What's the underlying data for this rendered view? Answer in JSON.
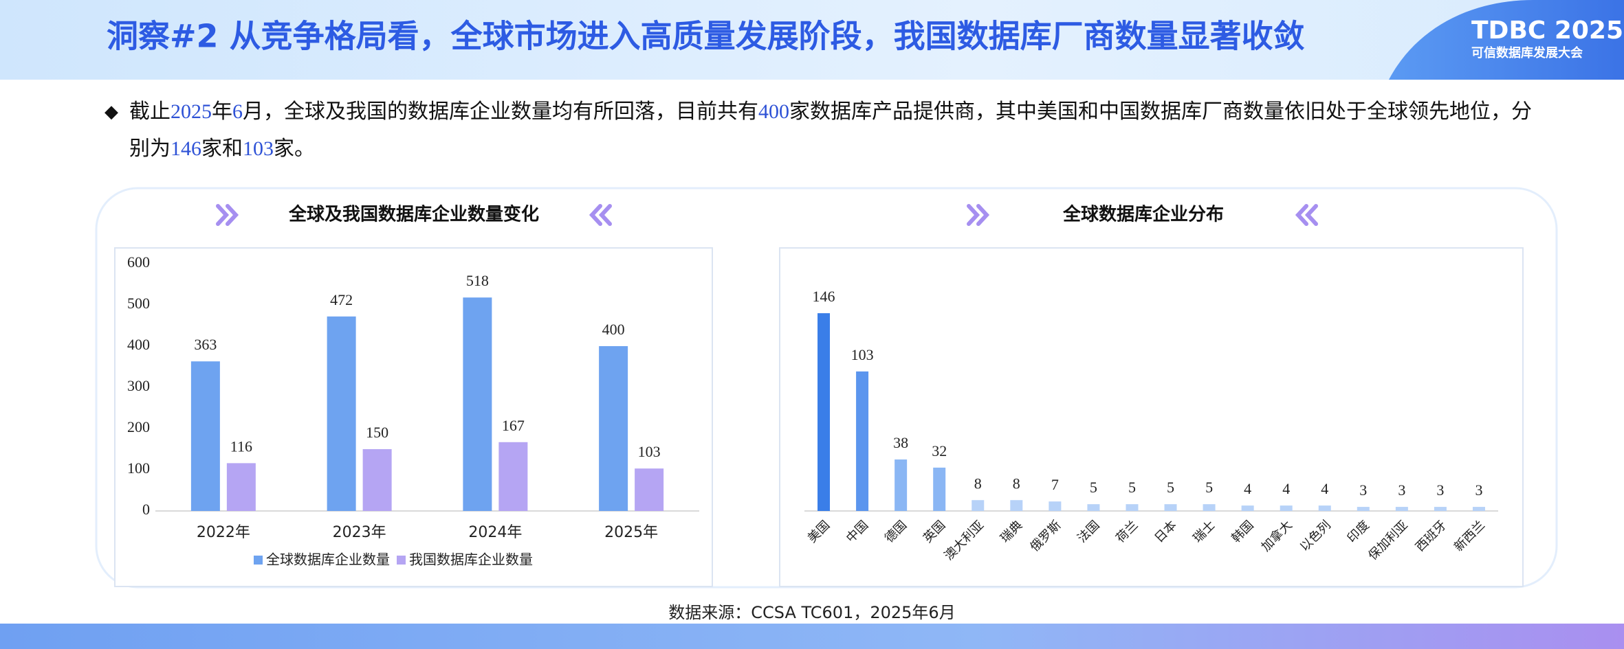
{
  "header": {
    "title": "洞察#2 从竞争格局看，全球市场进入高质量发展阶段，我国数据库厂商数量显著收敛",
    "logo": "TDBC 2025",
    "logo_sub": "可信数据库发展大会"
  },
  "bullet": [
    "截止",
    "2025",
    "年",
    "6",
    "月，全球及我国的数据库企业数量均有所回落，目前共有",
    "400",
    "家数据库产品提供商，其中美国和中国数据库厂商数量依旧处于全球领先地位，分别为",
    "146",
    "家和",
    "103",
    "家。"
  ],
  "chart_data": [
    {
      "type": "bar",
      "title": "全球及我国数据库企业数量变化",
      "categories": [
        "2022年",
        "2023年",
        "2024年",
        "2025年"
      ],
      "series": [
        {
          "name": "全球数据库企业数量",
          "color": "#6ea3f0",
          "values": [
            363,
            472,
            518,
            400
          ]
        },
        {
          "name": "我国数据库企业数量",
          "color": "#b5a5f3",
          "values": [
            116,
            150,
            167,
            103
          ]
        }
      ],
      "ylim": [
        0,
        600
      ],
      "yticks": [
        0,
        100,
        200,
        300,
        400,
        500,
        600
      ],
      "grid": false,
      "legend": "bottom"
    },
    {
      "type": "bar",
      "title": "全球数据库企业分布",
      "categories": [
        "美国",
        "中国",
        "德国",
        "英国",
        "澳大利亚",
        "瑞典",
        "俄罗斯",
        "法国",
        "荷兰",
        "日本",
        "瑞士",
        "韩国",
        "加拿大",
        "以色列",
        "印度",
        "保加利亚",
        "西班牙",
        "新西兰"
      ],
      "values": [
        146,
        103,
        38,
        32,
        8,
        8,
        7,
        5,
        5,
        5,
        5,
        4,
        4,
        4,
        3,
        3,
        3,
        3
      ],
      "colors": [
        "#3a7ee8",
        "#5b95ee",
        "#8ab6f4",
        "#8ab6f4",
        "#b7d2f8",
        "#b7d2f8",
        "#b7d2f8",
        "#b7d2f8",
        "#b7d2f8",
        "#b7d2f8",
        "#b7d2f8",
        "#b7d2f8",
        "#b7d2f8",
        "#b7d2f8",
        "#b7d2f8",
        "#b7d2f8",
        "#b7d2f8",
        "#b7d2f8"
      ],
      "ylim": [
        0,
        180
      ],
      "grid": false
    }
  ],
  "source": "数据来源：CCSA TC601，2025年6月"
}
